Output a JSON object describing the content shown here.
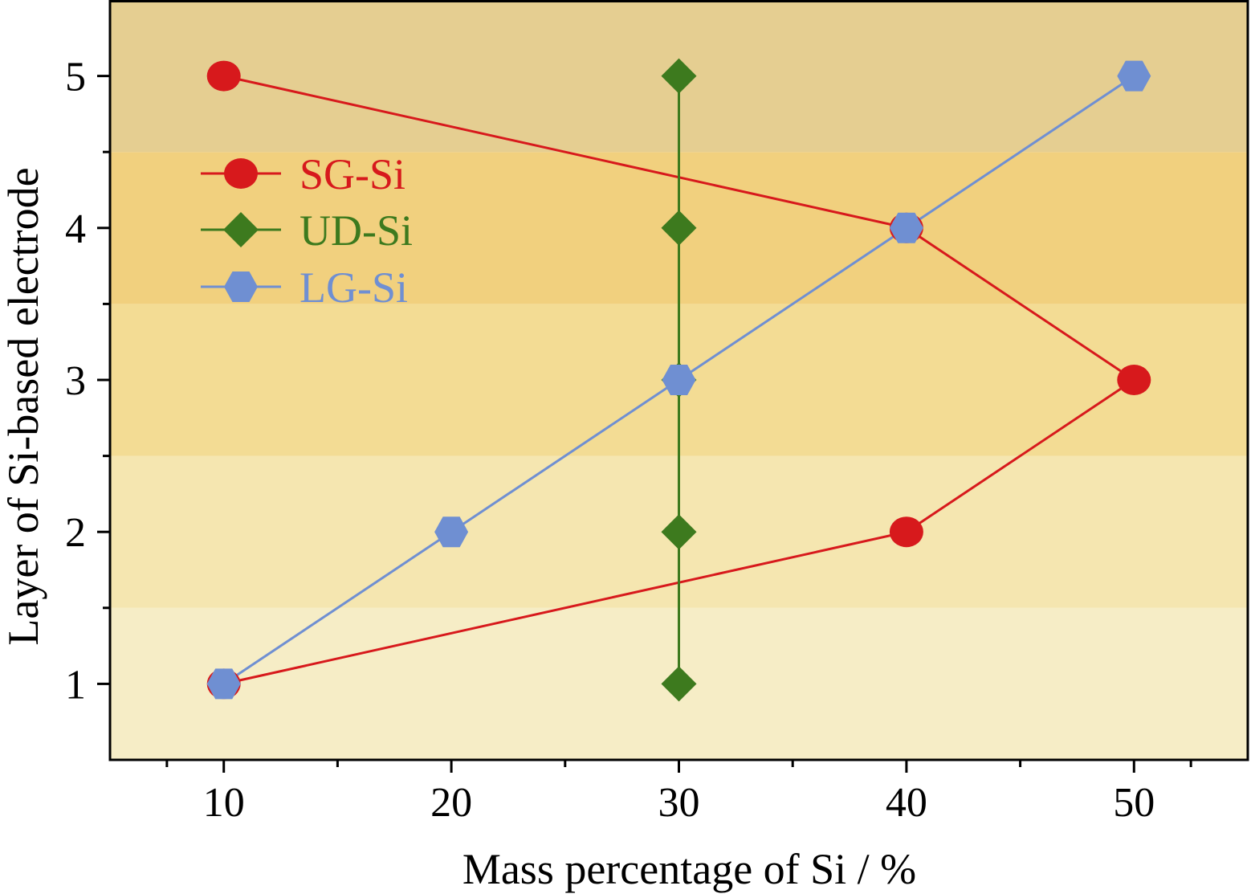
{
  "chart_data": {
    "type": "line",
    "xlabel": "Mass percentage of Si / %",
    "ylabel": "Layer of Si-based electrode",
    "xlim": [
      5,
      55
    ],
    "ylim": [
      0.5,
      5.5
    ],
    "xticks": [
      10,
      20,
      30,
      40,
      50
    ],
    "yticks": [
      1,
      2,
      3,
      4,
      5
    ],
    "grid": false,
    "legend_position": "upper-left",
    "background_bands": [
      {
        "from": 0.5,
        "to": 1.5,
        "color": "#F6EDC6"
      },
      {
        "from": 1.5,
        "to": 2.5,
        "color": "#F5E6B0"
      },
      {
        "from": 2.5,
        "to": 3.5,
        "color": "#F3DC94"
      },
      {
        "from": 3.5,
        "to": 4.5,
        "color": "#F1D07E"
      },
      {
        "from": 4.5,
        "to": 5.5,
        "color": "#E5CE91"
      }
    ],
    "series": [
      {
        "name": "SG-Si",
        "color": "#D7191C",
        "marker": "circle",
        "x": [
          10,
          40,
          50,
          40,
          10
        ],
        "y": [
          1,
          2,
          3,
          4,
          5
        ]
      },
      {
        "name": "UD-Si",
        "color": "#3D7A1E",
        "marker": "diamond",
        "x": [
          30,
          30,
          30,
          30,
          30
        ],
        "y": [
          1,
          2,
          3,
          4,
          5
        ]
      },
      {
        "name": "LG-Si",
        "color": "#6F8FD2",
        "marker": "hexagon",
        "x": [
          10,
          20,
          30,
          40,
          50
        ],
        "y": [
          1,
          2,
          3,
          4,
          5
        ]
      }
    ]
  }
}
